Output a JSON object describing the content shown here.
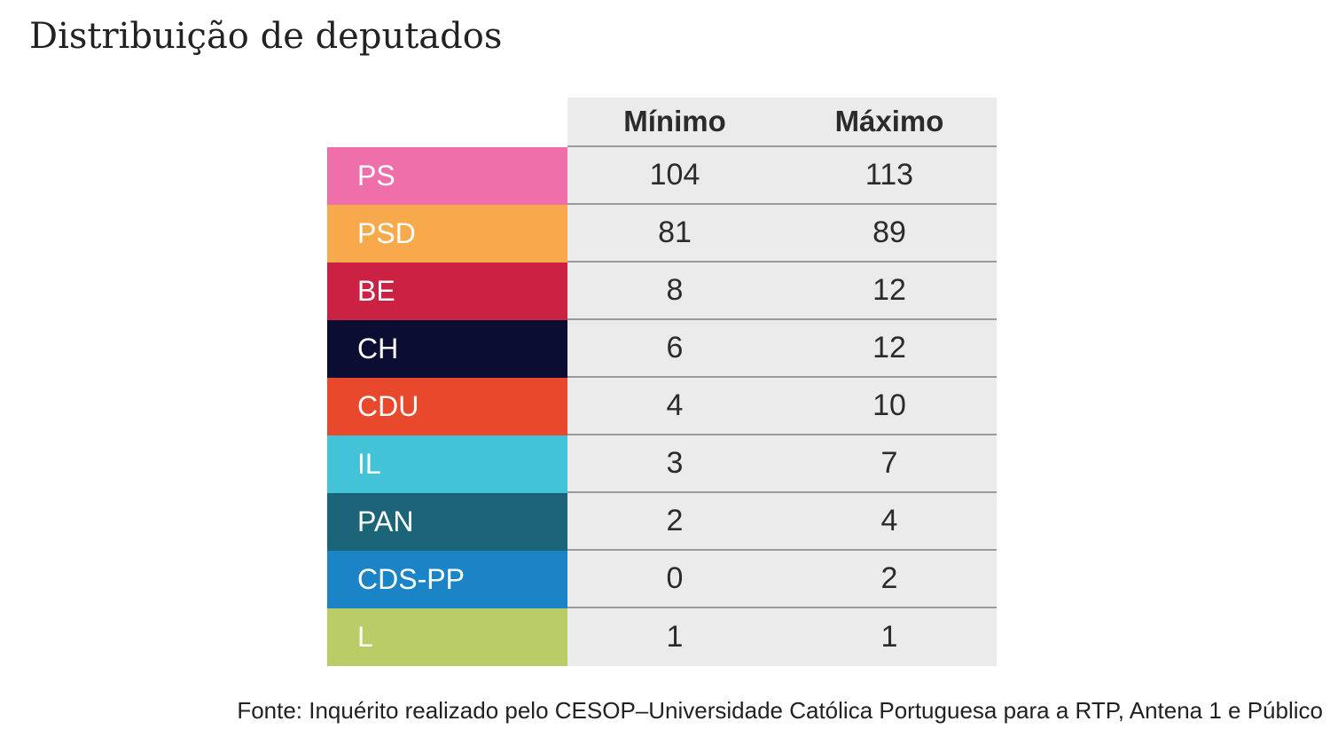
{
  "title": "Distribuição de deputados",
  "chart_data": {
    "type": "table",
    "title": "Distribuição de deputados",
    "columns": [
      "Mínimo",
      "Máximo"
    ],
    "rows": [
      {
        "party": "PS",
        "color": "#ee6faa",
        "min": "104",
        "max": "113"
      },
      {
        "party": "PSD",
        "color": "#f8a94c",
        "min": "81",
        "max": "89"
      },
      {
        "party": "BE",
        "color": "#cb2143",
        "min": "8",
        "max": "12"
      },
      {
        "party": "CH",
        "color": "#0c0d32",
        "min": "6",
        "max": "12"
      },
      {
        "party": "CDU",
        "color": "#e8482c",
        "min": "4",
        "max": "10"
      },
      {
        "party": "IL",
        "color": "#42c3d8",
        "min": "3",
        "max": "7"
      },
      {
        "party": "PAN",
        "color": "#1c6579",
        "min": "2",
        "max": "4"
      },
      {
        "party": "CDS-PP",
        "color": "#1a84c7",
        "min": "0",
        "max": "2"
      },
      {
        "party": "L",
        "color": "#b9cc65",
        "min": "1",
        "max": "1"
      }
    ]
  },
  "source": "Fonte: Inquérito realizado pelo CESOP–Universidade Católica Portuguesa para a RTP, Antena 1 e Público"
}
